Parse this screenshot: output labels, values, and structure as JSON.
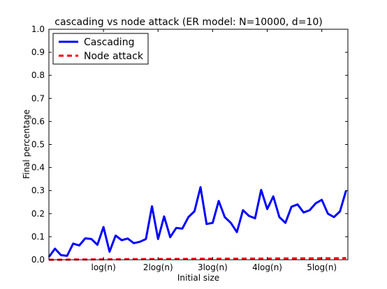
{
  "chart_data": {
    "type": "line",
    "title": "cascading vs node attack (ER model: N=10000, d=10)",
    "xlabel": "Initial size",
    "ylabel": "Final percentage",
    "ylim": [
      0.0,
      1.0
    ],
    "xlim": [
      0,
      44
    ],
    "y_ticks": [
      "0.0",
      "0.1",
      "0.2",
      "0.3",
      "0.4",
      "0.5",
      "0.6",
      "0.7",
      "0.8",
      "0.9",
      "1.0"
    ],
    "x_ticks": [
      {
        "x": 9,
        "label": "log(n)"
      },
      {
        "x": 18,
        "label": "2log(n)"
      },
      {
        "x": 27,
        "label": "3log(n)"
      },
      {
        "x": 36,
        "label": "4log(n)"
      },
      {
        "x": 45,
        "label": "5log(n)"
      }
    ],
    "x": [
      0,
      1,
      2,
      3,
      4,
      5,
      6,
      7,
      8,
      9,
      10,
      11,
      12,
      13,
      14,
      15,
      16,
      17,
      18,
      19,
      20,
      21,
      22,
      23,
      24,
      25,
      26,
      27,
      28,
      29,
      30,
      31,
      32,
      33,
      34,
      35,
      36,
      37,
      38,
      39,
      40,
      41,
      42,
      43,
      44,
      45,
      46,
      47,
      48,
      49
    ],
    "legend_position": "top-left",
    "series": [
      {
        "name": "Cascading",
        "color": "#0000ff",
        "style": "solid",
        "values": [
          0.012,
          0.048,
          0.02,
          0.017,
          0.07,
          0.062,
          0.093,
          0.09,
          0.065,
          0.142,
          0.035,
          0.105,
          0.085,
          0.092,
          0.072,
          0.078,
          0.09,
          0.232,
          0.09,
          0.188,
          0.098,
          0.138,
          0.135,
          0.185,
          0.21,
          0.315,
          0.155,
          0.16,
          0.255,
          0.185,
          0.16,
          0.12,
          0.215,
          0.19,
          0.18,
          0.303,
          0.22,
          0.275,
          0.185,
          0.16,
          0.23,
          0.24,
          0.205,
          0.215,
          0.245,
          0.26,
          0.2,
          0.185,
          0.21,
          0.3
        ]
      },
      {
        "name": "Node attack",
        "color": "#ff0000",
        "style": "dashed",
        "values": [
          0.0,
          0.0,
          0.0,
          0.0005,
          0.001,
          0.001,
          0.001,
          0.0015,
          0.0015,
          0.002,
          0.002,
          0.002,
          0.002,
          0.0025,
          0.0025,
          0.0025,
          0.003,
          0.003,
          0.003,
          0.003,
          0.0035,
          0.0035,
          0.0035,
          0.0035,
          0.004,
          0.004,
          0.004,
          0.004,
          0.0045,
          0.0045,
          0.0045,
          0.0045,
          0.005,
          0.005,
          0.005,
          0.005,
          0.005,
          0.0055,
          0.0055,
          0.0055,
          0.0055,
          0.006,
          0.006,
          0.006,
          0.006,
          0.0065,
          0.0065,
          0.0065,
          0.0065,
          0.007
        ]
      }
    ]
  }
}
